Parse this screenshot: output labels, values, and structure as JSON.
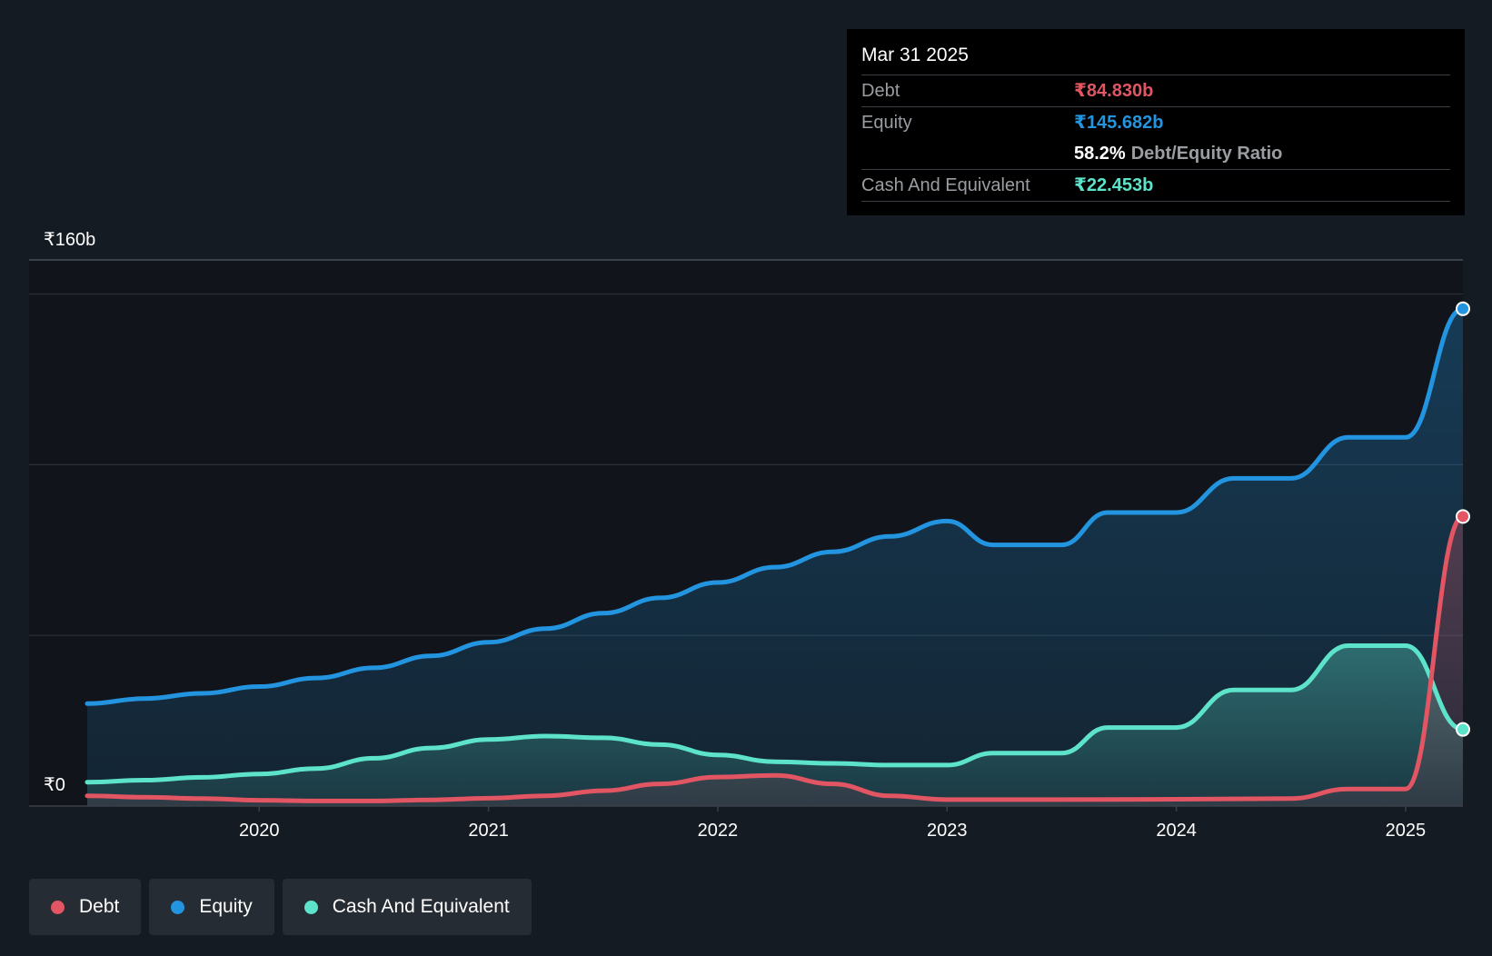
{
  "chart_data": {
    "type": "area",
    "title": "",
    "currency_symbol": "₹",
    "y_axis": {
      "top_label": "₹160b",
      "bottom_label": "₹0",
      "ylim": [
        0,
        160
      ]
    },
    "x_ticks": [
      "2020",
      "2021",
      "2022",
      "2023",
      "2024",
      "2025"
    ],
    "x_range": [
      2019.25,
      2025.25
    ],
    "series": [
      {
        "name": "Equity",
        "color": "#2394df",
        "points": [
          [
            2019.25,
            30.0
          ],
          [
            2019.5,
            31.5
          ],
          [
            2019.75,
            33.0
          ],
          [
            2020.0,
            35.0
          ],
          [
            2020.25,
            37.5
          ],
          [
            2020.5,
            40.5
          ],
          [
            2020.75,
            44.0
          ],
          [
            2021.0,
            48.0
          ],
          [
            2021.25,
            52.0
          ],
          [
            2021.5,
            56.5
          ],
          [
            2021.75,
            61.0
          ],
          [
            2022.0,
            65.5
          ],
          [
            2022.25,
            70.0
          ],
          [
            2022.5,
            74.5
          ],
          [
            2022.75,
            79.0
          ],
          [
            2023.0,
            83.5
          ],
          [
            2023.2,
            76.5
          ],
          [
            2023.5,
            76.5
          ],
          [
            2023.7,
            86.0
          ],
          [
            2024.0,
            86.0
          ],
          [
            2024.25,
            96.0
          ],
          [
            2024.5,
            96.0
          ],
          [
            2024.75,
            108.0
          ],
          [
            2025.0,
            108.0
          ],
          [
            2025.25,
            145.682
          ]
        ]
      },
      {
        "name": "Cash And Equivalent",
        "color": "#5ee3cb",
        "points": [
          [
            2019.25,
            7.0
          ],
          [
            2019.5,
            7.6
          ],
          [
            2019.75,
            8.4
          ],
          [
            2020.0,
            9.4
          ],
          [
            2020.25,
            11.0
          ],
          [
            2020.5,
            14.0
          ],
          [
            2020.75,
            17.0
          ],
          [
            2021.0,
            19.5
          ],
          [
            2021.25,
            20.5
          ],
          [
            2021.5,
            20.0
          ],
          [
            2021.75,
            18.0
          ],
          [
            2022.0,
            15.0
          ],
          [
            2022.25,
            13.0
          ],
          [
            2022.5,
            12.5
          ],
          [
            2022.75,
            12.0
          ],
          [
            2023.0,
            12.0
          ],
          [
            2023.2,
            15.5
          ],
          [
            2023.5,
            15.5
          ],
          [
            2023.7,
            23.0
          ],
          [
            2024.0,
            23.0
          ],
          [
            2024.25,
            34.0
          ],
          [
            2024.5,
            34.0
          ],
          [
            2024.75,
            47.0
          ],
          [
            2025.0,
            47.0
          ],
          [
            2025.25,
            22.453
          ]
        ]
      },
      {
        "name": "Debt",
        "color": "#e25563",
        "points": [
          [
            2019.25,
            3.0
          ],
          [
            2019.5,
            2.6
          ],
          [
            2019.75,
            2.2
          ],
          [
            2020.0,
            1.7
          ],
          [
            2020.25,
            1.5
          ],
          [
            2020.5,
            1.5
          ],
          [
            2020.75,
            1.8
          ],
          [
            2021.0,
            2.3
          ],
          [
            2021.25,
            3.0
          ],
          [
            2021.5,
            4.5
          ],
          [
            2021.75,
            6.5
          ],
          [
            2022.0,
            8.5
          ],
          [
            2022.25,
            9.0
          ],
          [
            2022.5,
            6.5
          ],
          [
            2022.75,
            3.0
          ],
          [
            2023.0,
            1.9
          ],
          [
            2023.5,
            1.9
          ],
          [
            2024.0,
            2.0
          ],
          [
            2024.5,
            2.2
          ],
          [
            2024.75,
            5.0
          ],
          [
            2025.0,
            5.0
          ],
          [
            2025.25,
            84.83
          ]
        ]
      }
    ]
  },
  "tooltip": {
    "date": "Mar 31 2025",
    "debt_label": "Debt",
    "debt_value": "₹84.830b",
    "equity_label": "Equity",
    "equity_value": "₹145.682b",
    "ratio_value": "58.2%",
    "ratio_label": "Debt/Equity Ratio",
    "cash_label": "Cash And Equivalent",
    "cash_value": "₹22.453b"
  },
  "legend": [
    {
      "label": "Debt",
      "color": "#e25563"
    },
    {
      "label": "Equity",
      "color": "#2394df"
    },
    {
      "label": "Cash And Equivalent",
      "color": "#5ee3cb"
    }
  ],
  "colors": {
    "background": "#151b23",
    "tooltip_bg": "#000000",
    "debt": "#e25563",
    "equity": "#2394df",
    "cash": "#5ee3cb"
  }
}
